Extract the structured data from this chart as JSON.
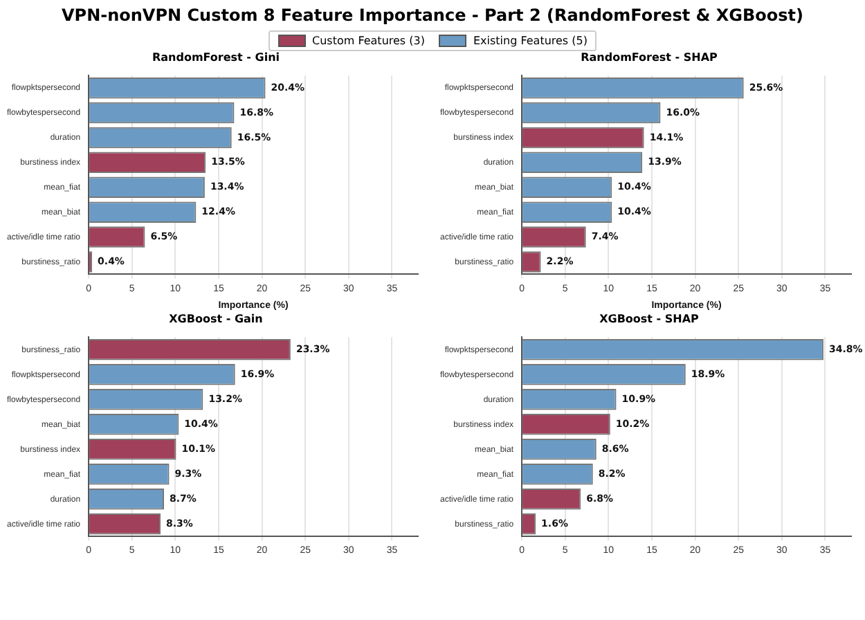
{
  "chart_data": [
    {
      "type": "bar",
      "orientation": "horizontal",
      "stacked": true,
      "title": "VPN-nonVPN Custom 8 Feature Importance - Part 2 (RandomForest & XGBoost)",
      "subtitle": "RandomForest - Gini",
      "xlabel": "Importance (%)",
      "legend": "top",
      "grid": "x",
      "xlim": [
        0,
        38
      ],
      "xticks": [
        0,
        5,
        10,
        15,
        20,
        25,
        30,
        35
      ],
      "categories": [
        "flowpktspersecond",
        "flowbytespersecond",
        "duration",
        "burstiness index",
        "mean_fiat",
        "mean_biat",
        "active/idle time ratio",
        "burstiness_ratio"
      ],
      "series": [
        {
          "name": "Custom Features (3)",
          "color": "#a0405a",
          "values": [
            null,
            null,
            null,
            13.5,
            null,
            null,
            6.5,
            0.4
          ],
          "value_labels": [
            null,
            null,
            null,
            "13.5%",
            null,
            null,
            "6.5%",
            "0.4%"
          ]
        },
        {
          "name": "Existing Features (5)",
          "color": "#6b9bc4",
          "values": [
            20.4,
            16.8,
            16.5,
            null,
            13.4,
            12.4,
            null,
            null
          ],
          "value_labels": [
            "20.4%",
            "16.8%",
            "16.5%",
            null,
            "13.4%",
            "12.4%",
            null,
            null
          ]
        }
      ]
    },
    {
      "type": "bar",
      "orientation": "horizontal",
      "stacked": true,
      "title": "RandomForest - SHAP",
      "xlabel": "Importance (%)",
      "grid": "x",
      "xlim": [
        0,
        38
      ],
      "xticks": [
        0,
        5,
        10,
        15,
        20,
        25,
        30,
        35
      ],
      "categories": [
        "flowpktspersecond",
        "flowbytespersecond",
        "burstiness index",
        "duration",
        "mean_biat",
        "mean_fiat",
        "active/idle time ratio",
        "burstiness_ratio"
      ],
      "series": [
        {
          "color": "#a0405a",
          "values": [
            null,
            null,
            14.1,
            null,
            null,
            null,
            7.4,
            2.2
          ],
          "value_labels": [
            null,
            null,
            "14.1%",
            null,
            null,
            null,
            "7.4%",
            "2.2%"
          ]
        },
        {
          "color": "#6b9bc4",
          "values": [
            25.6,
            16.0,
            null,
            13.9,
            10.4,
            10.4,
            null,
            null
          ],
          "value_labels": [
            "25.6%",
            "16.0%",
            null,
            "13.9%",
            "10.4%",
            "10.4%",
            null,
            null
          ]
        }
      ]
    },
    {
      "type": "bar",
      "orientation": "horizontal",
      "stacked": true,
      "title": "XGBoost - Gain",
      "grid": "x",
      "xlim": [
        0,
        38
      ],
      "xticks": [
        0,
        5,
        10,
        15,
        20,
        25,
        30,
        35
      ],
      "categories": [
        "burstiness_ratio",
        "flowpktspersecond",
        "flowbytespersecond",
        "mean_biat",
        "burstiness index",
        "mean_fiat",
        "duration",
        "active/idle time ratio"
      ],
      "series": [
        {
          "color": "#a0405a",
          "values": [
            23.3,
            null,
            null,
            null,
            10.1,
            null,
            null,
            8.3
          ],
          "value_labels": [
            "23.3%",
            null,
            null,
            null,
            "10.1%",
            null,
            null,
            "8.3%"
          ]
        },
        {
          "color": "#6b9bc4",
          "values": [
            null,
            16.9,
            13.2,
            10.4,
            null,
            9.3,
            8.7,
            null
          ],
          "value_labels": [
            null,
            "16.9%",
            "13.2%",
            "10.4%",
            null,
            "9.3%",
            "8.7%",
            null
          ]
        }
      ]
    },
    {
      "type": "bar",
      "orientation": "horizontal",
      "stacked": true,
      "title": "XGBoost - SHAP",
      "grid": "x",
      "xlim": [
        0,
        38
      ],
      "xticks": [
        0,
        5,
        10,
        15,
        20,
        25,
        30,
        35
      ],
      "categories": [
        "flowpktspersecond",
        "flowbytespersecond",
        "duration",
        "burstiness index",
        "mean_biat",
        "mean_fiat",
        "active/idle time ratio",
        "burstiness_ratio"
      ],
      "series": [
        {
          "color": "#a0405a",
          "values": [
            null,
            null,
            null,
            10.2,
            null,
            null,
            6.8,
            1.6
          ],
          "value_labels": [
            null,
            null,
            null,
            "10.2%",
            null,
            null,
            "6.8%",
            "1.6%"
          ]
        },
        {
          "color": "#6b9bc4",
          "values": [
            34.8,
            18.9,
            10.9,
            null,
            8.6,
            8.2,
            null,
            null
          ],
          "value_labels": [
            "34.8%",
            "18.9%",
            "10.9%",
            null,
            "8.6%",
            "8.2%",
            null,
            null
          ]
        }
      ]
    }
  ]
}
